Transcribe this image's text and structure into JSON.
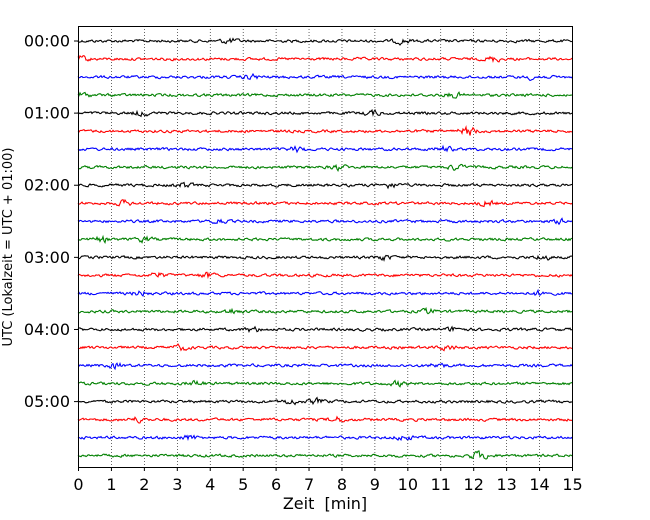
{
  "chart_data": {
    "type": "line",
    "title": "",
    "xlabel": "Zeit  [min]",
    "ylabel": "UTC (Lokalzeit = UTC + 01:00)",
    "xlim": [
      0,
      15
    ],
    "x_ticks": [
      "0",
      "1",
      "2",
      "3",
      "4",
      "5",
      "6",
      "7",
      "8",
      "9",
      "10",
      "11",
      "12",
      "13",
      "14",
      "15"
    ],
    "y_ticks": [
      "00:00",
      "01:00",
      "02:00",
      "03:00",
      "04:00",
      "05:00"
    ],
    "grid": "vertical dotted",
    "trace_interval_min": 15,
    "colors_cycle": [
      "#000000",
      "#ff0000",
      "#0000ff",
      "#008000"
    ],
    "traces": [
      {
        "start": "00:00",
        "color": "#000000"
      },
      {
        "start": "00:15",
        "color": "#ff0000"
      },
      {
        "start": "00:30",
        "color": "#0000ff"
      },
      {
        "start": "00:45",
        "color": "#008000"
      },
      {
        "start": "01:00",
        "color": "#000000"
      },
      {
        "start": "01:15",
        "color": "#ff0000"
      },
      {
        "start": "01:30",
        "color": "#0000ff"
      },
      {
        "start": "01:45",
        "color": "#008000"
      },
      {
        "start": "02:00",
        "color": "#000000"
      },
      {
        "start": "02:15",
        "color": "#ff0000"
      },
      {
        "start": "02:30",
        "color": "#0000ff"
      },
      {
        "start": "02:45",
        "color": "#008000"
      },
      {
        "start": "03:00",
        "color": "#000000"
      },
      {
        "start": "03:15",
        "color": "#ff0000"
      },
      {
        "start": "03:30",
        "color": "#0000ff"
      },
      {
        "start": "03:45",
        "color": "#008000"
      },
      {
        "start": "04:00",
        "color": "#000000"
      },
      {
        "start": "04:15",
        "color": "#ff0000"
      },
      {
        "start": "04:30",
        "color": "#0000ff"
      },
      {
        "start": "04:45",
        "color": "#008000"
      },
      {
        "start": "05:00",
        "color": "#000000"
      },
      {
        "start": "05:15",
        "color": "#ff0000"
      },
      {
        "start": "05:30",
        "color": "#0000ff"
      },
      {
        "start": "05:45",
        "color": "#008000"
      }
    ]
  }
}
